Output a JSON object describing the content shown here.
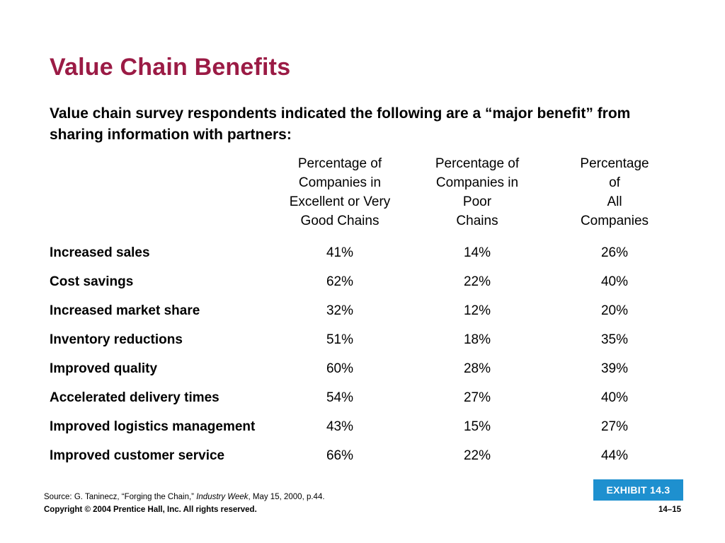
{
  "slide": {
    "title": "Value Chain Benefits",
    "intro": "Value chain survey respondents indicated the following are a “major benefit” from sharing information with partners:"
  },
  "table": {
    "columns": [
      {
        "lines": [
          "Percentage of",
          "Companies in",
          "Excellent or Very",
          "Good Chains"
        ]
      },
      {
        "lines": [
          "Percentage of",
          "Companies in",
          "Poor",
          "Chains"
        ]
      },
      {
        "lines": [
          "Percentage",
          "of",
          "All",
          "Companies"
        ]
      }
    ],
    "rows": [
      {
        "label": "Increased sales",
        "values": [
          "41%",
          "14%",
          "26%"
        ]
      },
      {
        "label": "Cost savings",
        "values": [
          "62%",
          "22%",
          "40%"
        ]
      },
      {
        "label": "Increased market share",
        "values": [
          "32%",
          "12%",
          "20%"
        ]
      },
      {
        "label": "Inventory reductions",
        "values": [
          "51%",
          "18%",
          "35%"
        ]
      },
      {
        "label": "Improved quality",
        "values": [
          "60%",
          "28%",
          "39%"
        ]
      },
      {
        "label": "Accelerated delivery times",
        "values": [
          "54%",
          "27%",
          "40%"
        ]
      },
      {
        "label": "Improved logistics management",
        "values": [
          "43%",
          "15%",
          "27%"
        ]
      },
      {
        "label": "Improved customer service",
        "values": [
          "66%",
          "22%",
          "44%"
        ]
      }
    ]
  },
  "footer": {
    "exhibit": "EXHIBIT 14.3",
    "source_prefix": "Source: G. Taninecz, “Forging the Chain,” ",
    "source_italic": "Industry Week",
    "source_suffix": ", May 15, 2000, p.44.",
    "copyright": "Copyright © 2004 Prentice Hall, Inc. All rights reserved.",
    "page": "14–15"
  },
  "colors": {
    "title": "#9b1b45",
    "exhibit_badge": "#1e90cf"
  }
}
